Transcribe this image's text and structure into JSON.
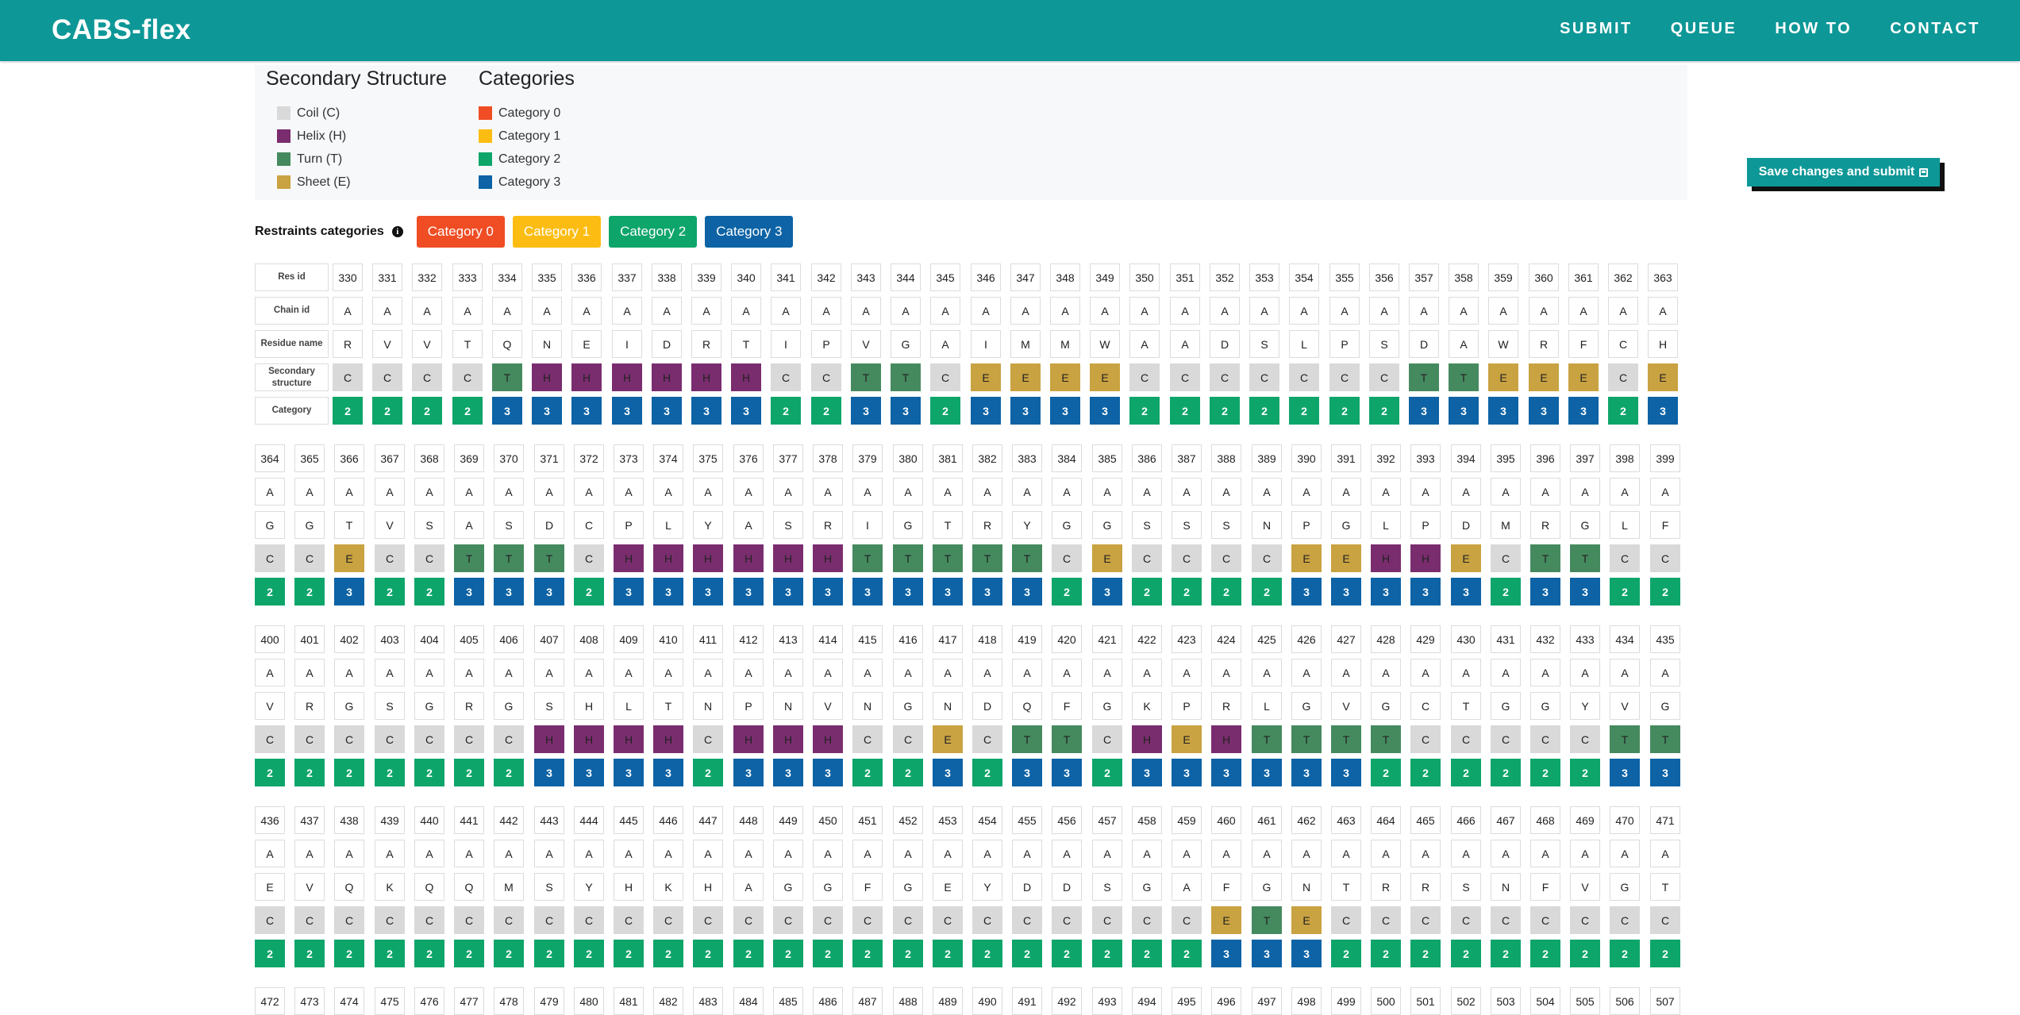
{
  "navbar": {
    "brand": "CABS-flex",
    "links": [
      "SUBMIT",
      "QUEUE",
      "HOW TO",
      "CONTACT"
    ]
  },
  "legend": {
    "secondary_title": "Secondary Structure",
    "secondary_items": [
      {
        "label": "Coil (C)",
        "color": "#d9d9d9"
      },
      {
        "label": "Helix (H)",
        "color": "#7a2d6e"
      },
      {
        "label": "Turn (T)",
        "color": "#458a5f"
      },
      {
        "label": "Sheet (E)",
        "color": "#c9a241"
      }
    ],
    "categories_title": "Categories",
    "category_items": [
      {
        "label": "Category 0",
        "color": "#f04d25"
      },
      {
        "label": "Category 1",
        "color": "#fcbc12"
      },
      {
        "label": "Category 2",
        "color": "#0ea56b"
      },
      {
        "label": "Category 3",
        "color": "#0d63a5"
      }
    ]
  },
  "save_button": "Save changes and submit",
  "restraints": {
    "label": "Restraints categories",
    "buttons": [
      "Category 0",
      "Category 1",
      "Category 2",
      "Category 3"
    ]
  },
  "row_headers": [
    "Res id",
    "Chain id",
    "Residue name",
    "Secondary structure",
    "Category"
  ],
  "blocks": [
    {
      "start": 330,
      "res": "RVVTQNEIDRTIPVGAIMMWAADSLPSDAWRFCH",
      "ss": "CCCCTHHHHHHCCTTCEEEECCCCCCCTTEEECE",
      "cat": "2222333333322332333322222223333323"
    },
    {
      "start": 364,
      "res": "GGTVSASDCPLYASRIGTRYGGSSSNPGLPDMRGLF",
      "ss": "CCECCTTTCHHHHHHTTTTTCECCCCEEHHECTTCC",
      "cat": "223223332333333333332322223333323322"
    },
    {
      "start": 400,
      "res": "VRGSGRGSHLTNPNVNGNDQFGKPRLGVGCTGGYVG",
      "ss": "CCCCCCCHHHHCHHHCCECTTCHEHTTTTCCCCCTT",
      "cat": "222222233332333223233233333322222233"
    },
    {
      "start": 436,
      "res": "EVQKQQMSYHKHAGGFGEYDDSGAFGNTRRSNFVGT",
      "ss": "CCCCCCCCCCCCCCCCCCCCCCCCETECCCCCCCCC",
      "cat": "222222222222222222222222333222222222"
    },
    {
      "start": 472,
      "res": "",
      "ss": "",
      "cat": ""
    }
  ],
  "ss_colors": {
    "C": "#d9d9d9",
    "H": "#7a2d6e",
    "T": "#458a5f",
    "E": "#c9a241"
  },
  "cat_colors": {
    "0": "#f04d25",
    "1": "#fcbc12",
    "2": "#0ea56b",
    "3": "#0d63a5"
  }
}
